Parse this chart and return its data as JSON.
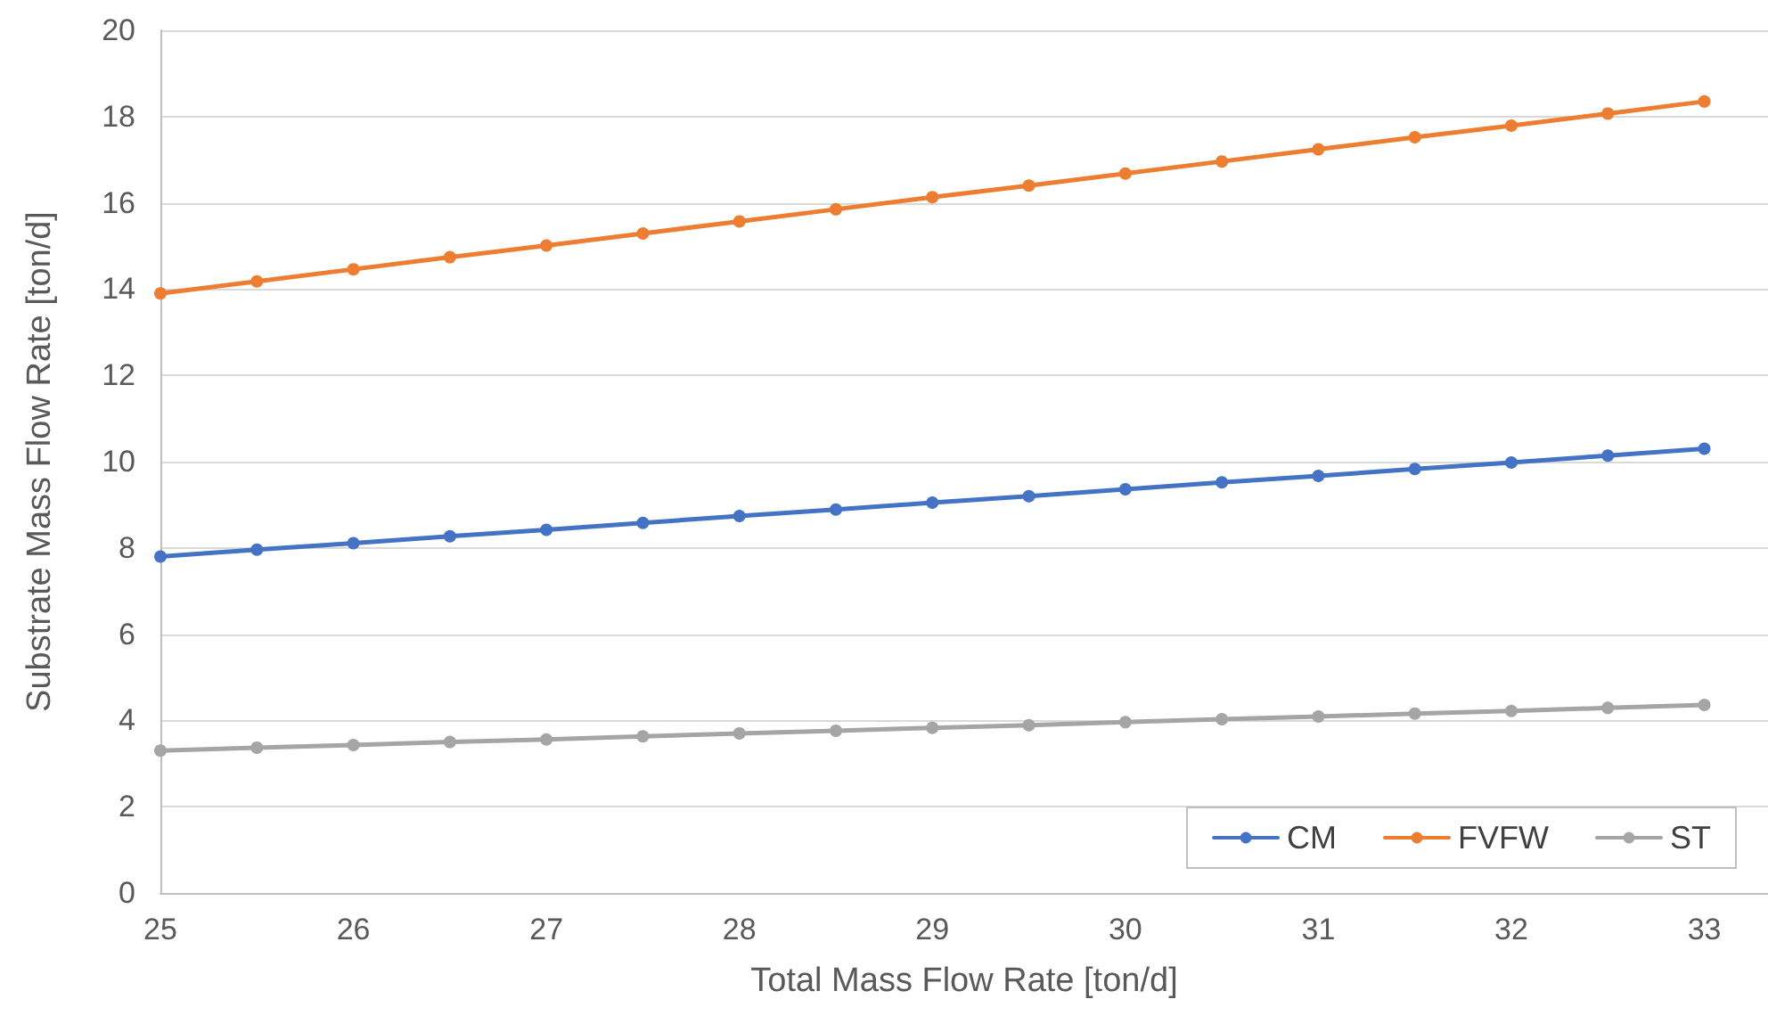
{
  "chart_data": {
    "type": "line",
    "xlabel": "Total Mass Flow Rate [ton/d]",
    "ylabel": "Substrate Mass Flow Rate [ton/d]",
    "x": [
      25,
      25.5,
      26,
      26.5,
      27,
      27.5,
      28,
      28.5,
      29,
      29.5,
      30,
      30.5,
      31,
      31.5,
      32,
      32.5,
      33
    ],
    "series": [
      {
        "name": "CM",
        "color": "#4472c4",
        "values": [
          7.8,
          7.96,
          8.11,
          8.27,
          8.42,
          8.58,
          8.74,
          8.89,
          9.05,
          9.2,
          9.36,
          9.52,
          9.67,
          9.83,
          9.98,
          10.14,
          10.3
        ]
      },
      {
        "name": "FVFW",
        "color": "#ed7d31",
        "values": [
          13.9,
          14.18,
          14.46,
          14.74,
          15.01,
          15.29,
          15.57,
          15.85,
          16.13,
          16.4,
          16.68,
          16.96,
          17.24,
          17.52,
          17.79,
          18.07,
          18.35
        ]
      },
      {
        "name": "ST",
        "color": "#a5a5a5",
        "values": [
          3.3,
          3.37,
          3.43,
          3.5,
          3.56,
          3.63,
          3.7,
          3.76,
          3.83,
          3.89,
          3.96,
          4.03,
          4.09,
          4.16,
          4.22,
          4.29,
          4.36
        ]
      }
    ],
    "xlim": [
      25,
      33.33
    ],
    "xticks": [
      25,
      26,
      27,
      28,
      29,
      30,
      31,
      32,
      33
    ],
    "ylim": [
      0,
      20
    ],
    "yticks": [
      0,
      2,
      4,
      6,
      8,
      10,
      12,
      14,
      16,
      18,
      20
    ],
    "grid": "y",
    "legend": "bottom right",
    "marker": "circle",
    "line_style": "solid"
  }
}
